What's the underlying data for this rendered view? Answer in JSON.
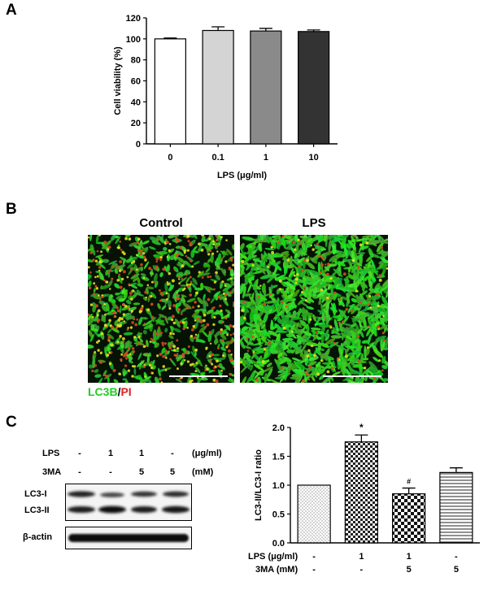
{
  "panels": {
    "a": {
      "letter": "A"
    },
    "b": {
      "letter": "B"
    },
    "c": {
      "letter": "C"
    }
  },
  "microscopy": {
    "control_title": "Control",
    "lps_title": "LPS",
    "stain_green": "LC3B",
    "stain_sep": "/",
    "stain_red": "PI",
    "green": "#22cc22",
    "red": "#dd2222"
  },
  "western_blot": {
    "rows": [
      {
        "label": "LPS",
        "values": [
          "-",
          "1",
          "1",
          "-"
        ],
        "unit": "(μg/ml)"
      },
      {
        "label": "3MA",
        "values": [
          "-",
          "-",
          "5",
          "5"
        ],
        "unit": "(mM)"
      }
    ],
    "bands": [
      "LC3-I",
      "LC3-II",
      "β-actin"
    ]
  },
  "chart_data": [
    {
      "type": "bar",
      "categories": [
        "0",
        "0.1",
        "1",
        "10"
      ],
      "values": [
        100,
        108,
        107.5,
        107
      ],
      "errors": [
        0.8,
        3.5,
        2.5,
        1.5
      ],
      "bar_colors": [
        "#ffffff",
        "#d4d4d4",
        "#8a8a8a",
        "#333333"
      ],
      "ylabel": "Cell viability (%)",
      "xlabel": "LPS (μg/ml)",
      "ylim": [
        0,
        120
      ],
      "yticks": [
        0,
        20,
        40,
        60,
        80,
        100,
        120
      ]
    },
    {
      "type": "bar",
      "categories": [
        "1",
        "2",
        "3",
        "4"
      ],
      "values": [
        1.0,
        1.75,
        0.85,
        1.22
      ],
      "errors": [
        0,
        0.12,
        0.1,
        0.08
      ],
      "annotations": [
        "",
        "*",
        "#",
        ""
      ],
      "patterns": [
        "dots",
        "checker",
        "fine-checker",
        "horizontal-lines"
      ],
      "ylabel": "LC3-II/LC3-I ratio",
      "ylim": [
        0,
        2.0
      ],
      "yticks": [
        "0.0",
        "0.5",
        "1.0",
        "1.5",
        "2.0"
      ],
      "conditions": [
        {
          "label": "LPS (μg/ml)",
          "values": [
            "-",
            "1",
            "1",
            "-"
          ]
        },
        {
          "label": "3MA (mM)",
          "values": [
            "-",
            "-",
            "5",
            "5"
          ]
        }
      ]
    }
  ]
}
